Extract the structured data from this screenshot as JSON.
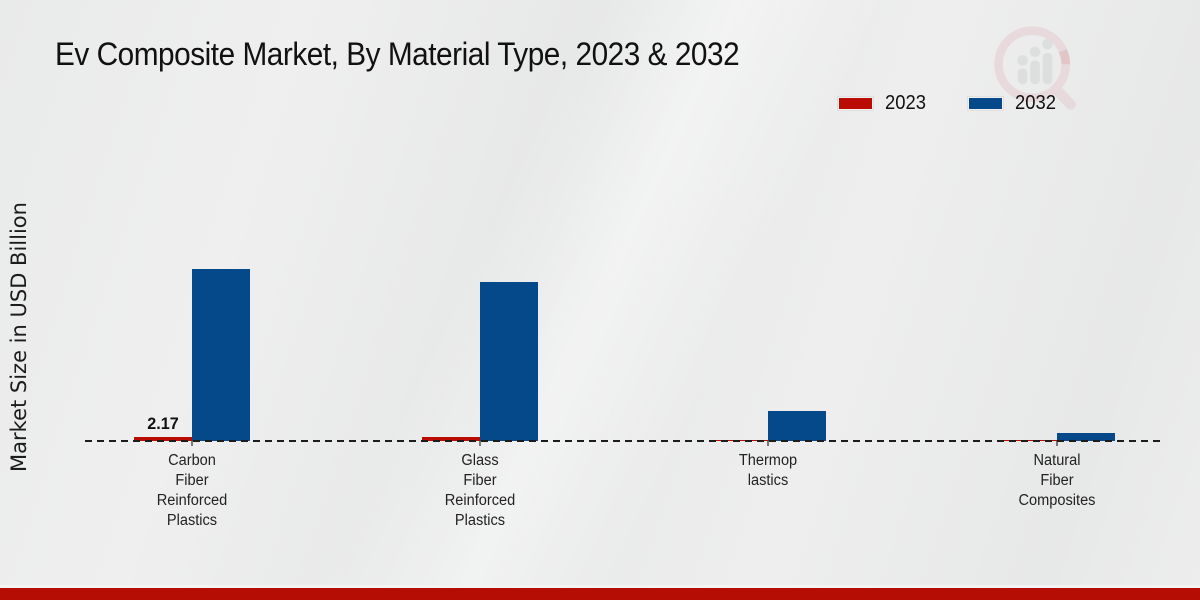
{
  "header": {
    "title": "Ev Composite Market, By Material Type, 2023 & 2032"
  },
  "watermark": {
    "name": "market-research-logo-watermark"
  },
  "legend": {
    "items": [
      {
        "label": "2023",
        "color": "#bb0c03"
      },
      {
        "label": "2032",
        "color": "#05498a"
      }
    ]
  },
  "y_axis": {
    "label": "Market Size in USD Billion"
  },
  "footer": {
    "stripe_color": "#b50d03"
  },
  "chart_data": {
    "type": "bar",
    "title": "Ev Composite Market, By Material Type, 2023 & 2032",
    "ylabel": "Market Size in USD Billion",
    "xlabel": "",
    "categories": [
      "Carbon Fiber Reinforced Plastics",
      "Glass Fiber Reinforced Plastics",
      "Thermoplastics",
      "Natural Fiber Composites"
    ],
    "category_display_lines": [
      [
        "Carbon",
        "Fiber",
        "Reinforced",
        "Plastics"
      ],
      [
        "Glass",
        "Fiber",
        "Reinforced",
        "Plastics"
      ],
      [
        "Thermop",
        "lastics"
      ],
      [
        "Natural",
        "Fiber",
        "Composites"
      ]
    ],
    "series": [
      {
        "name": "2023",
        "color": "#bb0c03",
        "values": [
          2.17,
          2.0,
          0.6,
          0.5
        ],
        "data_labels": [
          "2.17",
          "",
          "",
          ""
        ]
      },
      {
        "name": "2032",
        "color": "#05498a",
        "values": [
          93,
          86,
          16,
          4.5
        ],
        "data_labels": [
          "",
          "",
          "",
          ""
        ]
      }
    ],
    "ylim": [
      0,
      100
    ],
    "baseline_value": 0,
    "grid": false,
    "legend_position": "top-right"
  }
}
